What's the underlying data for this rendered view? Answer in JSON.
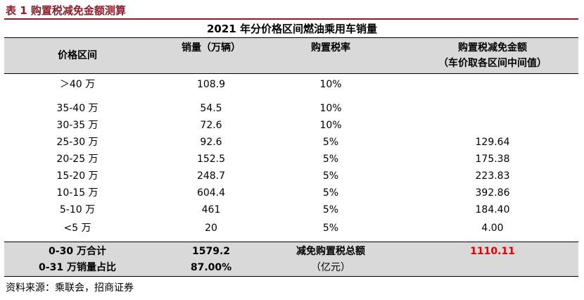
{
  "caption": "表 1 购置税减免金额测算",
  "table_title": "2021 年分价格区间燃油乘用车销量",
  "headers": {
    "price_range": "价格区间",
    "sales": "销量（万辆）",
    "tax_rate": "购置税率",
    "reduction_line1": "购置税减免金额",
    "reduction_line2": "（车价取各区间中间值）"
  },
  "rows": [
    {
      "range": "＞40 万",
      "sales": "108.9",
      "rate": "10%",
      "reduction": ""
    },
    {
      "range": "35-40 万",
      "sales": "54.5",
      "rate": "10%",
      "reduction": ""
    },
    {
      "range": "30-35 万",
      "sales": "72.6",
      "rate": "10%",
      "reduction": ""
    },
    {
      "range": "25-30 万",
      "sales": "92.6",
      "rate": "5%",
      "reduction": "129.64"
    },
    {
      "range": "20-25 万",
      "sales": "152.5",
      "rate": "5%",
      "reduction": "175.38"
    },
    {
      "range": "15-20 万",
      "sales": "248.7",
      "rate": "5%",
      "reduction": "223.83"
    },
    {
      "range": "10-15 万",
      "sales": "604.4",
      "rate": "5%",
      "reduction": "392.86"
    },
    {
      "range": "5-10 万",
      "sales": "461",
      "rate": "5%",
      "reduction": "184.40"
    },
    {
      "range": "<5 万",
      "sales": "20",
      "rate": "5%",
      "reduction": "4.00"
    }
  ],
  "summary": {
    "total_label": "0-30 万合计",
    "total_value": "1579.2",
    "reduction_label_line1": "减免购置税总额",
    "reduction_label_line2": "（亿元）",
    "reduction_total": "1110.11",
    "share_label": "0-31 万销量占比",
    "share_value": "87.00%"
  },
  "source": "资料来源：乘联会，招商证券",
  "colors": {
    "caption": "#8b1c2b",
    "highlight": "#e00000",
    "band": "#d9d9d9"
  }
}
